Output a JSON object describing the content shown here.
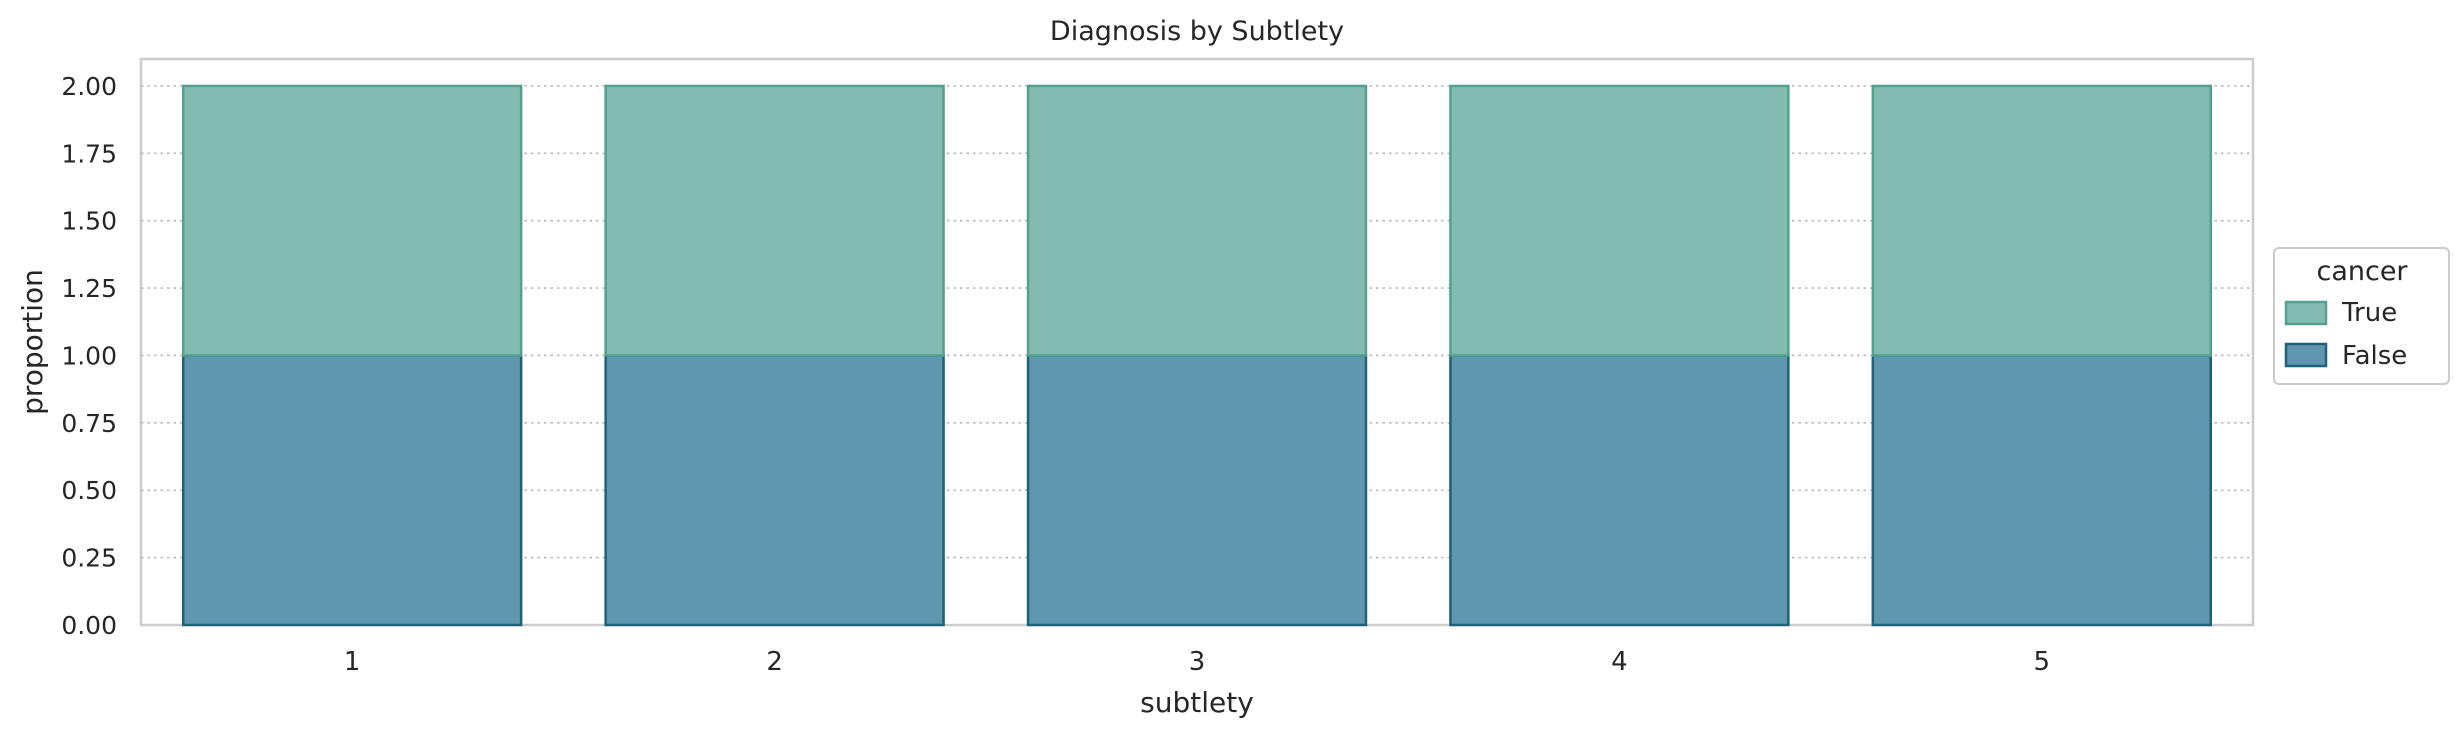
{
  "chart_data": {
    "type": "bar",
    "stacked": true,
    "title": "Diagnosis by Subtlety",
    "xlabel": "subtlety",
    "ylabel": "proportion",
    "categories": [
      "1",
      "2",
      "3",
      "4",
      "5"
    ],
    "ylim": [
      0,
      2.1
    ],
    "yticks": [
      "0.00",
      "0.25",
      "0.50",
      "0.75",
      "1.00",
      "1.25",
      "1.50",
      "1.75",
      "2.00"
    ],
    "grid": true,
    "legend": {
      "title": "cancer",
      "placement": "right",
      "entries": [
        "True",
        "False"
      ]
    },
    "series": [
      {
        "name": "False",
        "values": [
          1.0,
          1.0,
          1.0,
          1.0,
          1.0
        ],
        "color": "#5f98ae",
        "edge": "#1f6178"
      },
      {
        "name": "True",
        "values": [
          1.0,
          1.0,
          1.0,
          1.0,
          1.0
        ],
        "color": "#84bbb0",
        "edge": "#53a08e"
      }
    ]
  }
}
